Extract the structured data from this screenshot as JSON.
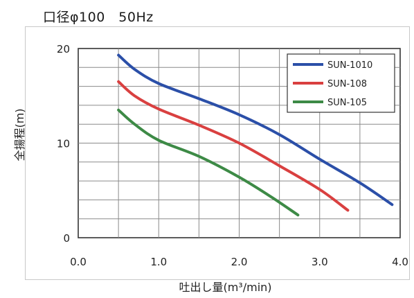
{
  "title": "口径φ100　50Hz",
  "chart_data": {
    "type": "line",
    "title": "口径φ100　50Hz",
    "xlabel": "吐出し量(m³/min)",
    "ylabel": "全揚程(m)",
    "xlim": [
      0,
      4.0
    ],
    "ylim": [
      0,
      20
    ],
    "x_ticks": [
      "0.0",
      "1.0",
      "2.0",
      "3.0",
      "4.0"
    ],
    "y_ticks": [
      "0",
      "10",
      "20"
    ],
    "grid": true,
    "legend_position": "top-right",
    "series": [
      {
        "name": "SUN-1010",
        "color": "#2b4fa8",
        "points": [
          [
            0.5,
            19.3
          ],
          [
            0.7,
            17.8
          ],
          [
            1.0,
            16.3
          ],
          [
            1.5,
            14.7
          ],
          [
            2.0,
            13.0
          ],
          [
            2.5,
            10.9
          ],
          [
            3.0,
            8.3
          ],
          [
            3.5,
            5.8
          ],
          [
            3.9,
            3.5
          ]
        ]
      },
      {
        "name": "SUN-108",
        "color": "#d94040",
        "points": [
          [
            0.5,
            16.5
          ],
          [
            0.7,
            15.0
          ],
          [
            1.0,
            13.6
          ],
          [
            1.5,
            11.9
          ],
          [
            2.0,
            10.0
          ],
          [
            2.5,
            7.6
          ],
          [
            3.0,
            5.1
          ],
          [
            3.35,
            2.9
          ]
        ]
      },
      {
        "name": "SUN-105",
        "color": "#3d8a46",
        "points": [
          [
            0.5,
            13.5
          ],
          [
            0.7,
            12.0
          ],
          [
            1.0,
            10.3
          ],
          [
            1.5,
            8.6
          ],
          [
            2.0,
            6.4
          ],
          [
            2.4,
            4.3
          ],
          [
            2.73,
            2.4
          ]
        ]
      }
    ]
  }
}
